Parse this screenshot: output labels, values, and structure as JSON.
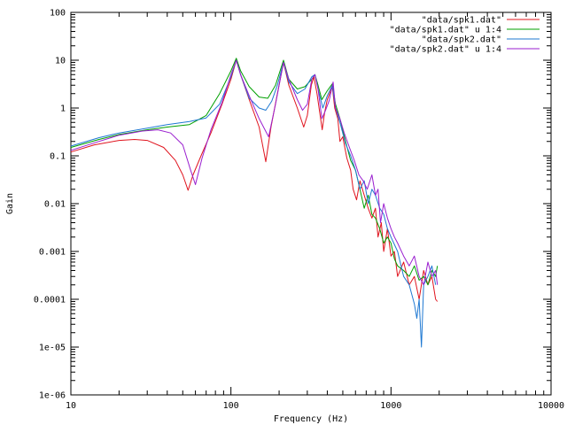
{
  "chart_data": {
    "type": "line",
    "xlabel": "Frequency (Hz)",
    "ylabel": "Gain",
    "x_scale": "log",
    "y_scale": "log",
    "xlim": [
      10,
      10000
    ],
    "ylim": [
      1e-06,
      100
    ],
    "grid": false,
    "legend_position": "top-right",
    "x_ticks": [
      {
        "value": 10,
        "label": "10"
      },
      {
        "value": 100,
        "label": "100"
      },
      {
        "value": 1000,
        "label": "1000"
      },
      {
        "value": 10000,
        "label": "10000"
      }
    ],
    "y_ticks": [
      {
        "value": 100,
        "label": "100"
      },
      {
        "value": 10,
        "label": "10"
      },
      {
        "value": 1,
        "label": "1"
      },
      {
        "value": 0.1,
        "label": "0.1"
      },
      {
        "value": 0.01,
        "label": "0.01"
      },
      {
        "value": 0.001,
        "label": "0.001"
      },
      {
        "value": 0.0001,
        "label": "0.0001"
      },
      {
        "value": 1e-05,
        "label": "1e-05"
      },
      {
        "value": 1e-06,
        "label": "1e-06"
      }
    ],
    "series": [
      {
        "name": "\"data/spk1.dat\"",
        "color": "#e0141e",
        "points": [
          [
            10,
            0.12
          ],
          [
            14,
            0.17
          ],
          [
            20,
            0.21
          ],
          [
            25,
            0.22
          ],
          [
            30,
            0.21
          ],
          [
            38,
            0.15
          ],
          [
            45,
            0.08
          ],
          [
            50,
            0.04
          ],
          [
            54,
            0.019
          ],
          [
            58,
            0.04
          ],
          [
            65,
            0.1
          ],
          [
            75,
            0.3
          ],
          [
            88,
            1.2
          ],
          [
            100,
            4
          ],
          [
            108,
            10
          ],
          [
            115,
            5
          ],
          [
            130,
            1.5
          ],
          [
            150,
            0.4
          ],
          [
            165,
            0.075
          ],
          [
            178,
            0.4
          ],
          [
            195,
            2
          ],
          [
            213,
            9
          ],
          [
            230,
            3
          ],
          [
            260,
            1
          ],
          [
            285,
            0.4
          ],
          [
            300,
            0.7
          ],
          [
            318,
            3
          ],
          [
            330,
            4.5
          ],
          [
            345,
            2
          ],
          [
            372,
            0.35
          ],
          [
            385,
            0.8
          ],
          [
            400,
            1.5
          ],
          [
            430,
            2.8
          ],
          [
            445,
            1
          ],
          [
            465,
            0.6
          ],
          [
            480,
            0.2
          ],
          [
            500,
            0.25
          ],
          [
            530,
            0.09
          ],
          [
            560,
            0.05
          ],
          [
            580,
            0.02
          ],
          [
            610,
            0.012
          ],
          [
            640,
            0.03
          ],
          [
            680,
            0.015
          ],
          [
            720,
            0.008
          ],
          [
            760,
            0.005
          ],
          [
            800,
            0.008
          ],
          [
            830,
            0.002
          ],
          [
            870,
            0.004
          ],
          [
            900,
            0.001
          ],
          [
            950,
            0.003
          ],
          [
            1000,
            0.0008
          ],
          [
            1050,
            0.001
          ],
          [
            1100,
            0.0003
          ],
          [
            1200,
            0.0006
          ],
          [
            1300,
            0.0002
          ],
          [
            1400,
            0.0003
          ],
          [
            1500,
            0.0001
          ],
          [
            1600,
            0.0004
          ],
          [
            1700,
            0.0002
          ],
          [
            1800,
            0.0003
          ],
          [
            1900,
            0.0001
          ],
          [
            1950,
            9e-05
          ]
        ]
      },
      {
        "name": "\"data/spk1.dat\" u 1:4",
        "color": "#00a000",
        "points": [
          [
            10,
            0.15
          ],
          [
            15,
            0.22
          ],
          [
            20,
            0.28
          ],
          [
            30,
            0.35
          ],
          [
            40,
            0.4
          ],
          [
            55,
            0.45
          ],
          [
            70,
            0.7
          ],
          [
            85,
            2
          ],
          [
            100,
            6
          ],
          [
            108,
            11
          ],
          [
            115,
            6
          ],
          [
            130,
            2.8
          ],
          [
            150,
            1.7
          ],
          [
            170,
            1.6
          ],
          [
            190,
            3
          ],
          [
            213,
            10
          ],
          [
            230,
            4
          ],
          [
            260,
            2.5
          ],
          [
            290,
            2.8
          ],
          [
            320,
            4
          ],
          [
            335,
            5
          ],
          [
            350,
            3
          ],
          [
            370,
            1.5
          ],
          [
            400,
            2.3
          ],
          [
            430,
            3.2
          ],
          [
            450,
            1.2
          ],
          [
            480,
            0.6
          ],
          [
            520,
            0.2
          ],
          [
            560,
            0.08
          ],
          [
            600,
            0.05
          ],
          [
            640,
            0.02
          ],
          [
            680,
            0.008
          ],
          [
            720,
            0.015
          ],
          [
            760,
            0.006
          ],
          [
            800,
            0.005
          ],
          [
            850,
            0.003
          ],
          [
            900,
            0.0015
          ],
          [
            950,
            0.002
          ],
          [
            1000,
            0.0015
          ],
          [
            1050,
            0.0007
          ],
          [
            1100,
            0.0005
          ],
          [
            1200,
            0.0004
          ],
          [
            1300,
            0.0003
          ],
          [
            1400,
            0.0005
          ],
          [
            1500,
            0.00025
          ],
          [
            1600,
            0.0003
          ],
          [
            1700,
            0.0002
          ],
          [
            1800,
            0.0004
          ],
          [
            1900,
            0.0003
          ],
          [
            1950,
            0.0005
          ]
        ]
      },
      {
        "name": "\"data/spk2.dat\"",
        "color": "#1e78d2",
        "points": [
          [
            10,
            0.16
          ],
          [
            15,
            0.24
          ],
          [
            20,
            0.3
          ],
          [
            30,
            0.38
          ],
          [
            40,
            0.45
          ],
          [
            55,
            0.52
          ],
          [
            70,
            0.62
          ],
          [
            85,
            1.2
          ],
          [
            100,
            4.5
          ],
          [
            108,
            10
          ],
          [
            115,
            5
          ],
          [
            130,
            1.6
          ],
          [
            150,
            1.0
          ],
          [
            165,
            0.9
          ],
          [
            180,
            1.4
          ],
          [
            195,
            3
          ],
          [
            213,
            9
          ],
          [
            230,
            3.5
          ],
          [
            260,
            2
          ],
          [
            290,
            2.5
          ],
          [
            320,
            4.5
          ],
          [
            335,
            5
          ],
          [
            350,
            2.5
          ],
          [
            375,
            1
          ],
          [
            400,
            1.8
          ],
          [
            430,
            3
          ],
          [
            450,
            1
          ],
          [
            480,
            0.5
          ],
          [
            520,
            0.18
          ],
          [
            560,
            0.1
          ],
          [
            600,
            0.05
          ],
          [
            640,
            0.02
          ],
          [
            680,
            0.03
          ],
          [
            720,
            0.01
          ],
          [
            760,
            0.02
          ],
          [
            800,
            0.015
          ],
          [
            850,
            0.008
          ],
          [
            900,
            0.006
          ],
          [
            950,
            0.003
          ],
          [
            1000,
            0.002
          ],
          [
            1100,
            0.001
          ],
          [
            1200,
            0.0003
          ],
          [
            1300,
            0.0002
          ],
          [
            1400,
            8e-05
          ],
          [
            1450,
            4e-05
          ],
          [
            1500,
            0.0001
          ],
          [
            1550,
            1e-05
          ],
          [
            1600,
            0.0002
          ],
          [
            1700,
            0.0003
          ],
          [
            1800,
            0.0005
          ],
          [
            1900,
            0.0002
          ]
        ]
      },
      {
        "name": "\"data/spk2.dat\" u 1:4",
        "color": "#9a1fcf",
        "points": [
          [
            10,
            0.13
          ],
          [
            15,
            0.2
          ],
          [
            20,
            0.27
          ],
          [
            28,
            0.33
          ],
          [
            35,
            0.35
          ],
          [
            42,
            0.3
          ],
          [
            50,
            0.17
          ],
          [
            56,
            0.05
          ],
          [
            60,
            0.025
          ],
          [
            66,
            0.09
          ],
          [
            75,
            0.35
          ],
          [
            88,
            1.3
          ],
          [
            100,
            5
          ],
          [
            108,
            10
          ],
          [
            115,
            5
          ],
          [
            130,
            1.8
          ],
          [
            150,
            0.6
          ],
          [
            172,
            0.25
          ],
          [
            190,
            1.2
          ],
          [
            213,
            9
          ],
          [
            230,
            4
          ],
          [
            260,
            1.5
          ],
          [
            280,
            0.9
          ],
          [
            300,
            1.2
          ],
          [
            320,
            4
          ],
          [
            335,
            5
          ],
          [
            350,
            2.5
          ],
          [
            370,
            0.6
          ],
          [
            390,
            0.9
          ],
          [
            410,
            1.4
          ],
          [
            435,
            3.5
          ],
          [
            450,
            1
          ],
          [
            480,
            0.6
          ],
          [
            510,
            0.3
          ],
          [
            550,
            0.15
          ],
          [
            590,
            0.08
          ],
          [
            630,
            0.04
          ],
          [
            670,
            0.03
          ],
          [
            710,
            0.02
          ],
          [
            760,
            0.04
          ],
          [
            800,
            0.015
          ],
          [
            830,
            0.02
          ],
          [
            860,
            0.004
          ],
          [
            900,
            0.01
          ],
          [
            950,
            0.005
          ],
          [
            1000,
            0.003
          ],
          [
            1050,
            0.002
          ],
          [
            1100,
            0.0015
          ],
          [
            1200,
            0.0008
          ],
          [
            1300,
            0.0005
          ],
          [
            1400,
            0.0008
          ],
          [
            1500,
            0.0003
          ],
          [
            1600,
            0.0002
          ],
          [
            1700,
            0.0006
          ],
          [
            1800,
            0.0003
          ],
          [
            1900,
            0.0004
          ],
          [
            1950,
            0.0002
          ]
        ]
      }
    ]
  }
}
